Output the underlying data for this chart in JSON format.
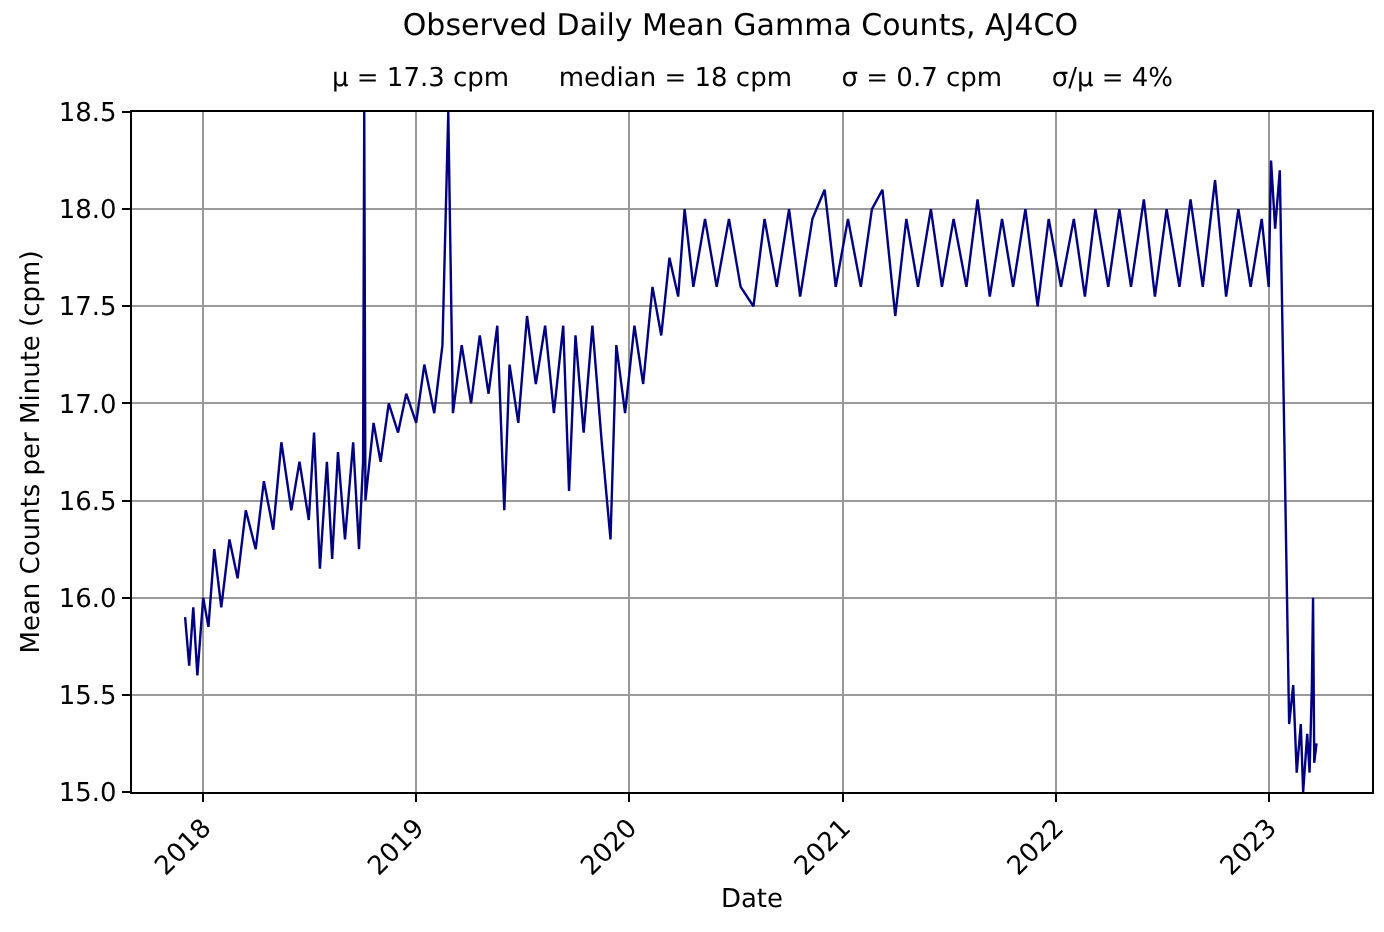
{
  "chart_data": {
    "type": "line",
    "title": "Observed Daily Mean Gamma Counts, AJ4CO",
    "subtitle": "μ = 17.3 cpm      median = 18 cpm      σ = 0.7 cpm      σ/μ = 4%",
    "xlabel": "Date",
    "ylabel": "Mean Counts per Minute (cpm)",
    "x": [
      "2017-12-01",
      "2017-12-08",
      "2017-12-15",
      "2017-12-22",
      "2018-01-01",
      "2018-01-10",
      "2018-01-20",
      "2018-02-01",
      "2018-02-15",
      "2018-03-01",
      "2018-03-15",
      "2018-04-01",
      "2018-04-15",
      "2018-05-01",
      "2018-05-15",
      "2018-06-01",
      "2018-06-15",
      "2018-07-01",
      "2018-07-10",
      "2018-07-20",
      "2018-08-01",
      "2018-08-10",
      "2018-08-20",
      "2018-09-01",
      "2018-09-15",
      "2018-09-25",
      "2018-10-02",
      "2018-10-04",
      "2018-10-06",
      "2018-10-20",
      "2018-11-01",
      "2018-11-15",
      "2018-12-01",
      "2018-12-15",
      "2019-01-01",
      "2019-01-15",
      "2019-02-01",
      "2019-02-15",
      "2019-02-25",
      "2019-03-05",
      "2019-03-20",
      "2019-04-05",
      "2019-04-20",
      "2019-05-05",
      "2019-05-20",
      "2019-06-01",
      "2019-06-10",
      "2019-06-25",
      "2019-07-10",
      "2019-07-25",
      "2019-08-10",
      "2019-08-25",
      "2019-09-10",
      "2019-09-20",
      "2019-10-01",
      "2019-10-15",
      "2019-10-30",
      "2019-11-15",
      "2019-11-30",
      "2019-12-10",
      "2019-12-25",
      "2020-01-10",
      "2020-01-25",
      "2020-02-10",
      "2020-02-25",
      "2020-03-10",
      "2020-03-25",
      "2020-04-05",
      "2020-04-20",
      "2020-05-10",
      "2020-05-30",
      "2020-06-20",
      "2020-07-10",
      "2020-08-01",
      "2020-08-20",
      "2020-09-10",
      "2020-10-01",
      "2020-10-20",
      "2020-11-10",
      "2020-12-01",
      "2020-12-20",
      "2021-01-10",
      "2021-02-01",
      "2021-02-20",
      "2021-03-10",
      "2021-04-01",
      "2021-04-20",
      "2021-05-10",
      "2021-06-01",
      "2021-06-20",
      "2021-07-10",
      "2021-08-01",
      "2021-08-20",
      "2021-09-10",
      "2021-10-01",
      "2021-10-20",
      "2021-11-10",
      "2021-12-01",
      "2021-12-20",
      "2022-01-10",
      "2022-02-01",
      "2022-02-20",
      "2022-03-10",
      "2022-04-01",
      "2022-04-20",
      "2022-05-10",
      "2022-06-01",
      "2022-06-20",
      "2022-07-10",
      "2022-08-01",
      "2022-08-20",
      "2022-09-10",
      "2022-10-01",
      "2022-10-20",
      "2022-11-10",
      "2022-12-01",
      "2022-12-20",
      "2023-01-01",
      "2023-01-05",
      "2023-01-12",
      "2023-01-20",
      "2023-02-05",
      "2023-02-12",
      "2023-02-18",
      "2023-02-25",
      "2023-03-01",
      "2023-03-08",
      "2023-03-12",
      "2023-03-16",
      "2023-03-18",
      "2023-03-20",
      "2023-03-24"
    ],
    "values": [
      15.9,
      15.65,
      15.95,
      15.6,
      16.0,
      15.85,
      16.25,
      15.95,
      16.3,
      16.1,
      16.45,
      16.25,
      16.6,
      16.35,
      16.8,
      16.45,
      16.7,
      16.4,
      16.85,
      16.15,
      16.7,
      16.2,
      16.75,
      16.3,
      16.8,
      16.25,
      16.7,
      18.5,
      16.5,
      16.9,
      16.7,
      17.0,
      16.85,
      17.05,
      16.9,
      17.2,
      16.95,
      17.3,
      18.5,
      16.95,
      17.3,
      17.0,
      17.35,
      17.05,
      17.4,
      16.45,
      17.2,
      16.9,
      17.45,
      17.1,
      17.4,
      16.95,
      17.4,
      16.55,
      17.35,
      16.85,
      17.4,
      16.8,
      16.3,
      17.3,
      16.95,
      17.4,
      17.1,
      17.6,
      17.35,
      17.75,
      17.55,
      18.0,
      17.6,
      17.95,
      17.6,
      17.95,
      17.6,
      17.5,
      17.95,
      17.6,
      18.0,
      17.55,
      17.95,
      18.1,
      17.6,
      17.95,
      17.6,
      18.0,
      18.1,
      17.45,
      17.95,
      17.6,
      18.0,
      17.6,
      17.95,
      17.6,
      18.05,
      17.55,
      17.95,
      17.6,
      18.0,
      17.5,
      17.95,
      17.6,
      17.95,
      17.55,
      18.0,
      17.6,
      18.0,
      17.6,
      18.05,
      17.55,
      18.0,
      17.6,
      18.05,
      17.6,
      18.15,
      17.55,
      18.0,
      17.6,
      17.95,
      17.6,
      18.25,
      17.9,
      18.2,
      15.35,
      15.55,
      15.1,
      15.35,
      15.0,
      15.3,
      15.1,
      15.55,
      16.0,
      15.15,
      15.25
    ],
    "color": "#000080",
    "xlim": [
      "2017-09-01",
      "2023-06-27"
    ],
    "xticks": [
      {
        "value": "2018-01-01",
        "label": "2018"
      },
      {
        "value": "2019-01-01",
        "label": "2019"
      },
      {
        "value": "2020-01-01",
        "label": "2020"
      },
      {
        "value": "2021-01-01",
        "label": "2021"
      },
      {
        "value": "2022-01-01",
        "label": "2022"
      },
      {
        "value": "2023-01-01",
        "label": "2023"
      }
    ],
    "ylim": [
      15.0,
      18.5
    ],
    "yticks": [
      {
        "value": 15,
        "label": "15.0"
      },
      {
        "value": 15.5,
        "label": "15.5"
      },
      {
        "value": 16,
        "label": "16.0"
      },
      {
        "value": 16.5,
        "label": "16.5"
      },
      {
        "value": 17,
        "label": "17.0"
      },
      {
        "value": 17.5,
        "label": "17.5"
      },
      {
        "value": 18,
        "label": "18.0"
      },
      {
        "value": 18.5,
        "label": "18.5"
      }
    ],
    "grid": true,
    "marker": "none",
    "line_style": "solid"
  }
}
